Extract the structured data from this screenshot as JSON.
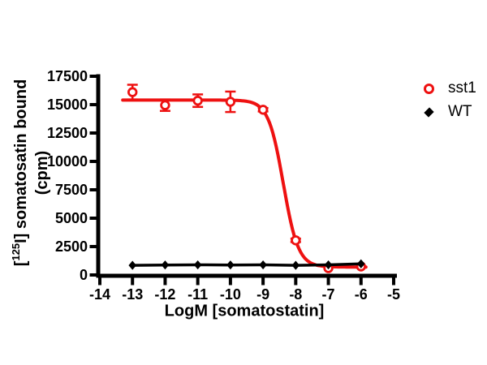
{
  "chart_data": {
    "type": "scatter",
    "title": "",
    "xlabel": "LogM [somatostatin]",
    "ylabel": {
      "bracket_open": "[",
      "isotope": "125",
      "line1_rest": "I] somatosatin bound",
      "line2": "(cpm)"
    },
    "xlim": [
      -14,
      -5
    ],
    "ylim": [
      0,
      17500
    ],
    "x_ticks": [
      "-14",
      "-13",
      "-12",
      "-11",
      "-10",
      "-9",
      "-8",
      "-7",
      "-6",
      "-5"
    ],
    "x_tick_values": [
      -14,
      -13,
      -12,
      -11,
      -10,
      -9,
      -8,
      -7,
      -6,
      -5
    ],
    "y_ticks": [
      "0",
      "2500",
      "5000",
      "7500",
      "10000",
      "12500",
      "15000",
      "17500"
    ],
    "y_tick_values": [
      0,
      2500,
      5000,
      7500,
      10000,
      12500,
      15000,
      17500
    ],
    "grid": false,
    "legend_position": "right-top",
    "series": [
      {
        "name": "sst1",
        "color": "#ee1111",
        "marker": "open-circle",
        "x": [
          -13,
          -12,
          -11,
          -10,
          -9,
          -8,
          -7,
          -6
        ],
        "y": [
          16100,
          14950,
          15350,
          15250,
          14550,
          3050,
          600,
          750
        ],
        "error": [
          650,
          500,
          550,
          900,
          150,
          150,
          0,
          0
        ],
        "fit": {
          "type": "4PL",
          "top": 15400,
          "bottom": 700,
          "logec50": -8.38,
          "hill": 1.9,
          "x_start": -13.3,
          "x_end": -5.85
        }
      },
      {
        "name": "WT",
        "color": "#000000",
        "marker": "filled-diamond",
        "x": [
          -13,
          -12,
          -11,
          -10,
          -9,
          -8,
          -7,
          -6
        ],
        "y": [
          850,
          880,
          890,
          880,
          890,
          850,
          890,
          980
        ],
        "error": [
          0,
          0,
          0,
          0,
          0,
          0,
          0,
          0
        ],
        "fit": {
          "type": "line"
        }
      }
    ],
    "legend": {
      "items": [
        {
          "label": "sst1",
          "marker": "open-circle",
          "color": "#ee1111"
        },
        {
          "label": "WT",
          "marker": "filled-diamond",
          "color": "#000000"
        }
      ]
    }
  }
}
